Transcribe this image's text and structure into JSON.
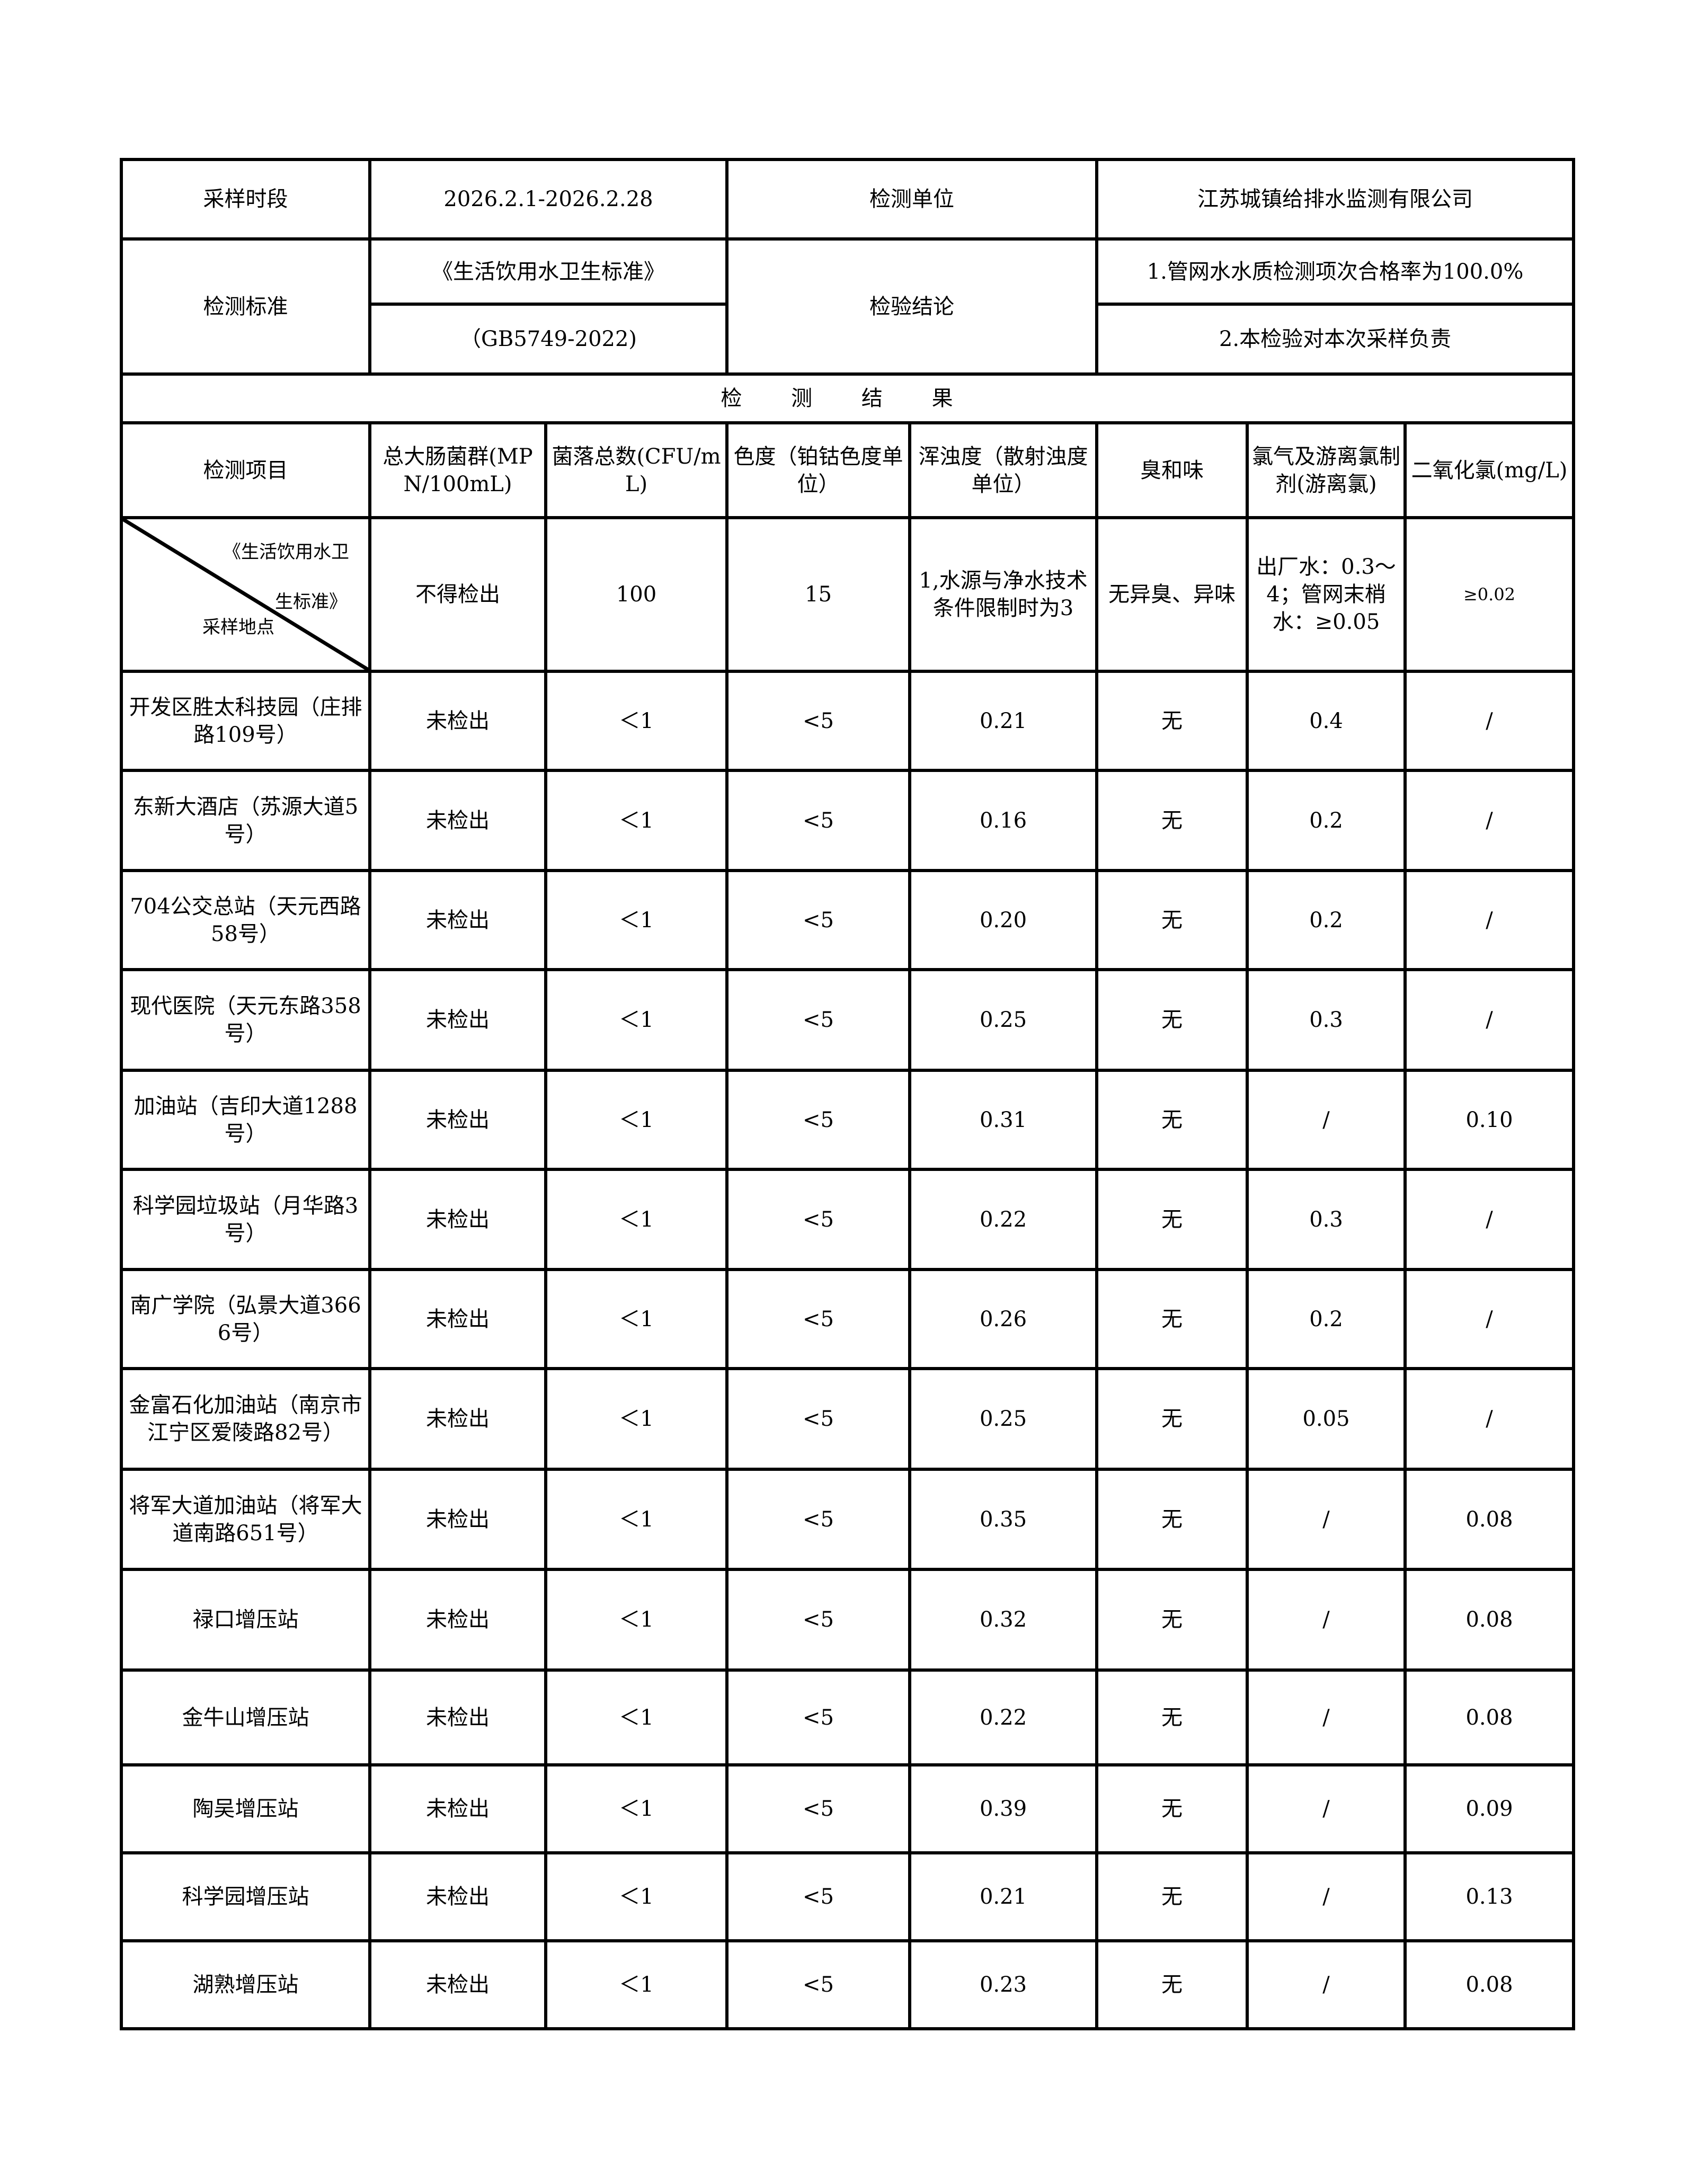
{
  "header": {
    "period_label": "采样时段",
    "period_value": "2026.2.1-2026.2.28",
    "unit_label": "检测单位",
    "unit_value": "江苏城镇给排水监测有限公司",
    "standard_label": "检测标准",
    "standard_name": "《生活饮用水卫生标准》",
    "standard_code": "（GB5749-2022)",
    "conclusion_label": "检验结论",
    "conclusion_1": "1.管网水水质检测项次合格率为100.0%",
    "conclusion_2": "2.本检验对本次采样负责"
  },
  "results_title": "检 测 结 果",
  "columns": [
    "检测项目",
    "总大肠菌群(MPN/100mL)",
    "菌落总数(CFU/mL)",
    "色度（铂钴色度单位）",
    "浑浊度（散射浊度单位）",
    "臭和味",
    "氯气及游离氯制剂(游离氯)",
    "二氧化氯(mg/L)"
  ],
  "standard_row": {
    "diag_top": "《生活饮用水卫",
    "diag_mid": "生标准》",
    "diag_bottom": "采样地点",
    "values": [
      "不得检出",
      "100",
      "15",
      "1,水源与净水技术条件限制时为3",
      "无异臭、异味",
      "出厂水：0.3～4；管网末梢水：≥0.05",
      "≥0.02"
    ]
  },
  "rows": [
    [
      "开发区胜太科技园（庄排路109号）",
      "未检出",
      "＜1",
      "<5",
      "0.21",
      "无",
      "0.4",
      "/"
    ],
    [
      "东新大酒店（苏源大道5号）",
      "未检出",
      "＜1",
      "<5",
      "0.16",
      "无",
      "0.2",
      "/"
    ],
    [
      "704公交总站（天元西路58号）",
      "未检出",
      "＜1",
      "<5",
      "0.20",
      "无",
      "0.2",
      "/"
    ],
    [
      "现代医院（天元东路358号）",
      "未检出",
      "＜1",
      "<5",
      "0.25",
      "无",
      "0.3",
      "/"
    ],
    [
      "加油站（吉印大道1288号）",
      "未检出",
      "＜1",
      "<5",
      "0.31",
      "无",
      "/",
      "0.10"
    ],
    [
      "科学园垃圾站（月华路3号）",
      "未检出",
      "＜1",
      "<5",
      "0.22",
      "无",
      "0.3",
      "/"
    ],
    [
      "南广学院（弘景大道3666号）",
      "未检出",
      "＜1",
      "<5",
      "0.26",
      "无",
      "0.2",
      "/"
    ],
    [
      "金富石化加油站（南京市江宁区爱陵路82号）",
      "未检出",
      "＜1",
      "<5",
      "0.25",
      "无",
      "0.05",
      "/"
    ],
    [
      "将军大道加油站（将军大道南路651号）",
      "未检出",
      "＜1",
      "<5",
      "0.35",
      "无",
      "/",
      "0.08"
    ],
    [
      "禄口增压站",
      "未检出",
      "＜1",
      "<5",
      "0.32",
      "无",
      "/",
      "0.08"
    ],
    [
      "金牛山增压站",
      "未检出",
      "＜1",
      "<5",
      "0.22",
      "无",
      "/",
      "0.08"
    ],
    [
      "陶吴增压站",
      "未检出",
      "＜1",
      "<5",
      "0.39",
      "无",
      "/",
      "0.09"
    ],
    [
      "科学园增压站",
      "未检出",
      "＜1",
      "<5",
      "0.21",
      "无",
      "/",
      "0.13"
    ],
    [
      "湖熟增压站",
      "未检出",
      "＜1",
      "<5",
      "0.23",
      "无",
      "/",
      "0.08"
    ]
  ]
}
